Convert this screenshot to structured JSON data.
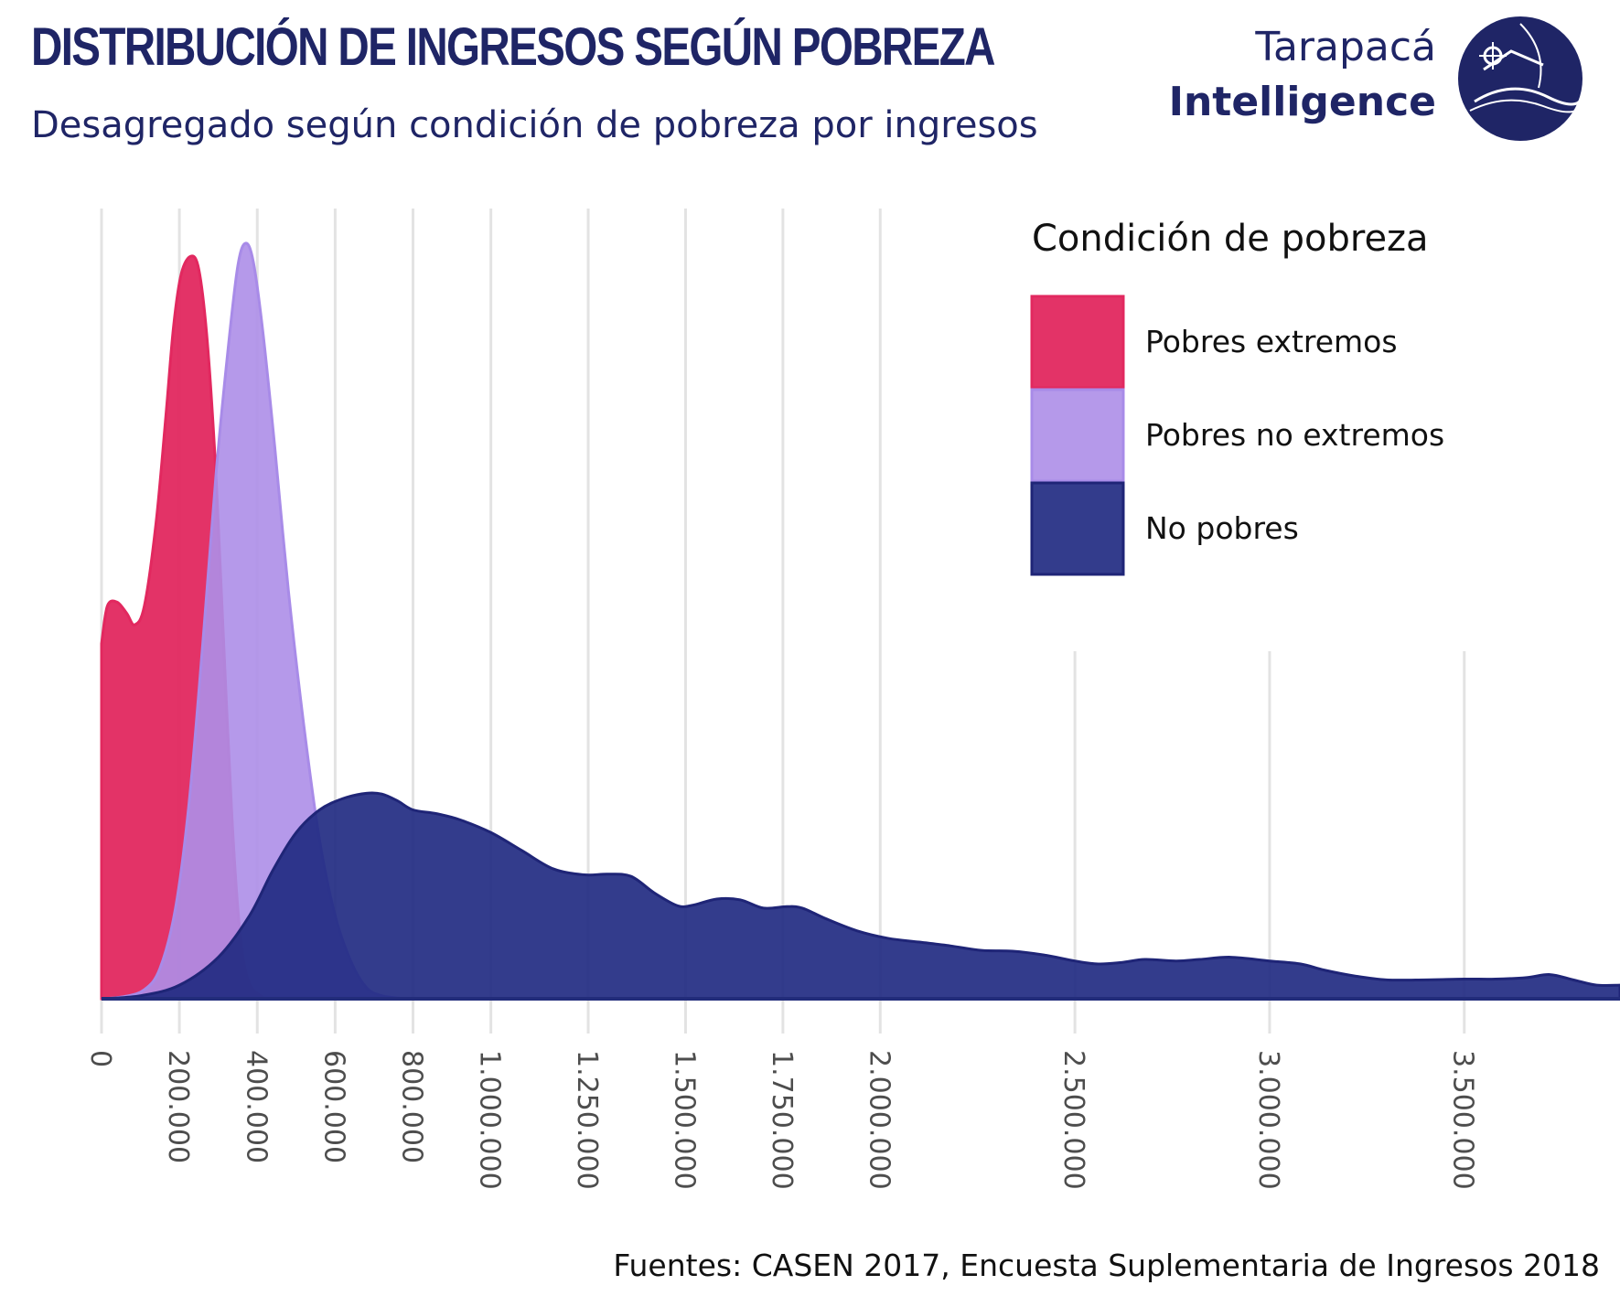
{
  "title": "DISTRIBUCIÓN DE INGRESOS SEGÚN POBREZA",
  "subtitle": "Desagregado según condición de pobreza por ingresos",
  "logo": {
    "line1": "Tarapacá",
    "line2": "Intelligence",
    "icon": "globe-logo-icon"
  },
  "source": "Fuentes: CASEN 2017, Encuesta Suplementaria de Ingresos 2018",
  "colors": {
    "title": "#1f2566",
    "grid": "#e3e3e3",
    "axis": "#222c7a"
  },
  "chart_data": {
    "type": "area",
    "title": "DISTRIBUCIÓN DE INGRESOS SEGÚN POBREZA",
    "subtitle": "Desagregado según condición de pobreza por ingresos",
    "xlabel": "",
    "ylabel": "",
    "xlim": [
      0,
      3900000
    ],
    "ylim": [
      0,
      1
    ],
    "grid": true,
    "legend": {
      "title": "Condición de pobreza",
      "position": "top-right"
    },
    "x_ticks": [
      {
        "value": 0,
        "label": "0"
      },
      {
        "value": 200000,
        "label": "200.000"
      },
      {
        "value": 400000,
        "label": "400.000"
      },
      {
        "value": 600000,
        "label": "600.000"
      },
      {
        "value": 800000,
        "label": "800.000"
      },
      {
        "value": 1000000,
        "label": "1.000.000"
      },
      {
        "value": 1250000,
        "label": "1.250.000"
      },
      {
        "value": 1500000,
        "label": "1.500.000"
      },
      {
        "value": 1750000,
        "label": "1.750.000"
      },
      {
        "value": 2000000,
        "label": "2.000.000"
      },
      {
        "value": 2500000,
        "label": "2.500.000"
      },
      {
        "value": 3000000,
        "label": "3.000.000"
      },
      {
        "value": 3500000,
        "label": "3.500.000"
      }
    ],
    "series": [
      {
        "name": "Pobres extremos",
        "color": "#e2285f",
        "fill": "#e2285f",
        "opacity": 0.95,
        "points": [
          [
            0,
            0.47
          ],
          [
            15000,
            0.52
          ],
          [
            40000,
            0.525
          ],
          [
            65000,
            0.51
          ],
          [
            85000,
            0.495
          ],
          [
            110000,
            0.52
          ],
          [
            140000,
            0.63
          ],
          [
            165000,
            0.77
          ],
          [
            185000,
            0.89
          ],
          [
            205000,
            0.96
          ],
          [
            230000,
            0.983
          ],
          [
            250000,
            0.965
          ],
          [
            270000,
            0.88
          ],
          [
            290000,
            0.73
          ],
          [
            305000,
            0.57
          ],
          [
            320000,
            0.4
          ],
          [
            335000,
            0.24
          ],
          [
            350000,
            0.12
          ],
          [
            365000,
            0.05
          ],
          [
            385000,
            0.015
          ],
          [
            420000,
            0.0
          ]
        ]
      },
      {
        "name": "Pobres no extremos",
        "color": "#a88be8",
        "fill": "#ad8ee8",
        "opacity": 0.9,
        "points": [
          [
            0,
            0.0
          ],
          [
            60000,
            0.003
          ],
          [
            110000,
            0.012
          ],
          [
            150000,
            0.04
          ],
          [
            190000,
            0.12
          ],
          [
            225000,
            0.26
          ],
          [
            260000,
            0.47
          ],
          [
            295000,
            0.7
          ],
          [
            325000,
            0.86
          ],
          [
            350000,
            0.97
          ],
          [
            370000,
            1.0
          ],
          [
            390000,
            0.975
          ],
          [
            415000,
            0.88
          ],
          [
            445000,
            0.73
          ],
          [
            480000,
            0.54
          ],
          [
            520000,
            0.36
          ],
          [
            560000,
            0.21
          ],
          [
            600000,
            0.11
          ],
          [
            640000,
            0.05
          ],
          [
            680000,
            0.015
          ],
          [
            720000,
            0.004
          ],
          [
            780000,
            0.0
          ]
        ]
      },
      {
        "name": "No pobres",
        "color": "#1f2577",
        "fill": "#222b82",
        "opacity": 0.92,
        "points": [
          [
            0,
            0.0
          ],
          [
            100000,
            0.004
          ],
          [
            200000,
            0.018
          ],
          [
            300000,
            0.055
          ],
          [
            380000,
            0.11
          ],
          [
            440000,
            0.17
          ],
          [
            500000,
            0.22
          ],
          [
            560000,
            0.25
          ],
          [
            620000,
            0.265
          ],
          [
            680000,
            0.272
          ],
          [
            720000,
            0.271
          ],
          [
            760000,
            0.262
          ],
          [
            800000,
            0.25
          ],
          [
            860000,
            0.245
          ],
          [
            920000,
            0.237
          ],
          [
            1000000,
            0.22
          ],
          [
            1080000,
            0.196
          ],
          [
            1160000,
            0.172
          ],
          [
            1240000,
            0.164
          ],
          [
            1300000,
            0.165
          ],
          [
            1360000,
            0.162
          ],
          [
            1420000,
            0.14
          ],
          [
            1480000,
            0.123
          ],
          [
            1520000,
            0.124
          ],
          [
            1580000,
            0.132
          ],
          [
            1640000,
            0.131
          ],
          [
            1700000,
            0.12
          ],
          [
            1760000,
            0.122
          ],
          [
            1800000,
            0.12
          ],
          [
            1860000,
            0.106
          ],
          [
            1940000,
            0.09
          ],
          [
            2020000,
            0.08
          ],
          [
            2100000,
            0.075
          ],
          [
            2180000,
            0.07
          ],
          [
            2260000,
            0.064
          ],
          [
            2340000,
            0.063
          ],
          [
            2420000,
            0.058
          ],
          [
            2500000,
            0.05
          ],
          [
            2560000,
            0.046
          ],
          [
            2620000,
            0.048
          ],
          [
            2680000,
            0.052
          ],
          [
            2760000,
            0.05
          ],
          [
            2820000,
            0.052
          ],
          [
            2900000,
            0.055
          ],
          [
            3000000,
            0.05
          ],
          [
            3080000,
            0.046
          ],
          [
            3140000,
            0.038
          ],
          [
            3220000,
            0.03
          ],
          [
            3300000,
            0.025
          ],
          [
            3400000,
            0.025
          ],
          [
            3500000,
            0.026
          ],
          [
            3580000,
            0.026
          ],
          [
            3660000,
            0.028
          ],
          [
            3720000,
            0.032
          ],
          [
            3780000,
            0.025
          ],
          [
            3840000,
            0.018
          ],
          [
            3900000,
            0.018
          ]
        ]
      }
    ]
  }
}
